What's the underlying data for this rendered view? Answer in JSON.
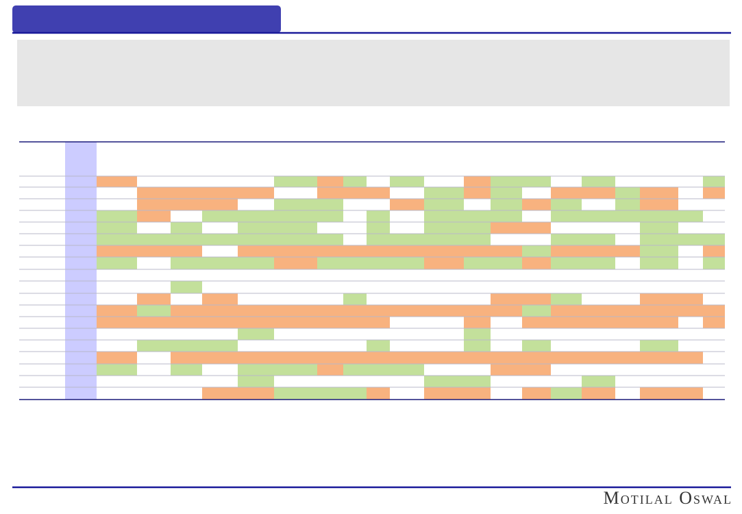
{
  "footer": {
    "brand": "Motilal Oswal"
  }
}
